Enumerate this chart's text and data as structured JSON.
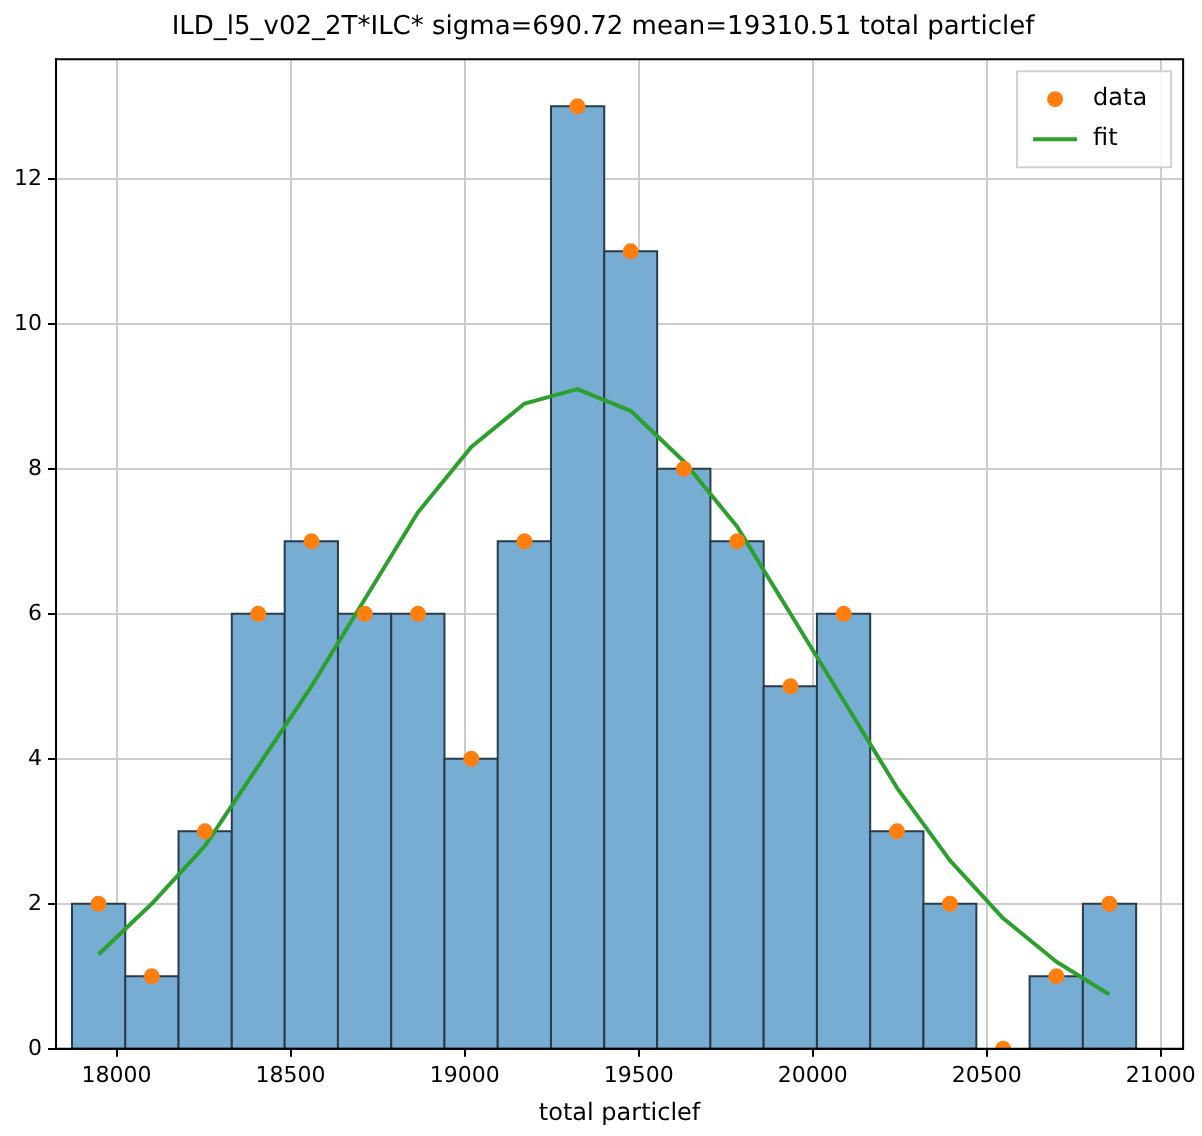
{
  "chart_data": {
    "type": "histogram",
    "title": "ILD_l5_v02_2T*ILC* sigma=690.72 mean=19310.51 total particlef",
    "xlabel": "total particlef",
    "bins": [
      17872,
      18025,
      18178,
      18331,
      18483,
      18636,
      18789,
      18942,
      19095,
      19248,
      19401,
      19553,
      19706,
      19859,
      20012,
      20165,
      20318,
      20470,
      20623,
      20776,
      20929
    ],
    "values": [
      2,
      1,
      3,
      6,
      7,
      6,
      6,
      4,
      7,
      13,
      11,
      8,
      7,
      5,
      6,
      3,
      2,
      0,
      1,
      2
    ],
    "color": "#77acd3",
    "series": [
      {
        "type": "scatter",
        "name": "data",
        "color": "#ff7f0e",
        "marker": "circle",
        "x": [
          17948,
          18101,
          18254,
          18407,
          18560,
          18713,
          18866,
          19019,
          19172,
          19324,
          19477,
          19630,
          19783,
          19936,
          20089,
          20242,
          20394,
          20547,
          20700,
          20852
        ],
        "values": [
          2,
          1,
          3,
          6,
          7,
          6,
          6,
          4,
          7,
          13,
          11,
          8,
          7,
          5,
          6,
          3,
          2,
          0,
          1,
          2
        ]
      },
      {
        "type": "line",
        "name": "fit",
        "color": "#2ca02c",
        "x": [
          17948,
          18101,
          18254,
          18407,
          18560,
          18713,
          18866,
          19019,
          19172,
          19324,
          19477,
          19630,
          19783,
          19936,
          20089,
          20242,
          20394,
          20547,
          20700,
          20852
        ],
        "values": [
          1.3,
          2.0,
          2.8,
          3.9,
          5.0,
          6.2,
          7.4,
          8.3,
          8.9,
          9.1,
          8.8,
          8.1,
          7.2,
          6.0,
          4.8,
          3.6,
          2.6,
          1.8,
          1.2,
          0.75
        ]
      }
    ],
    "xlim": [
      17826,
      21064
    ],
    "ylim": [
      0,
      13.65
    ],
    "xticks": [
      18000,
      18500,
      19000,
      19500,
      20000,
      20500,
      21000
    ],
    "yticks": [
      0,
      2,
      4,
      6,
      8,
      10,
      12
    ],
    "grid": true,
    "legend": "top right"
  }
}
